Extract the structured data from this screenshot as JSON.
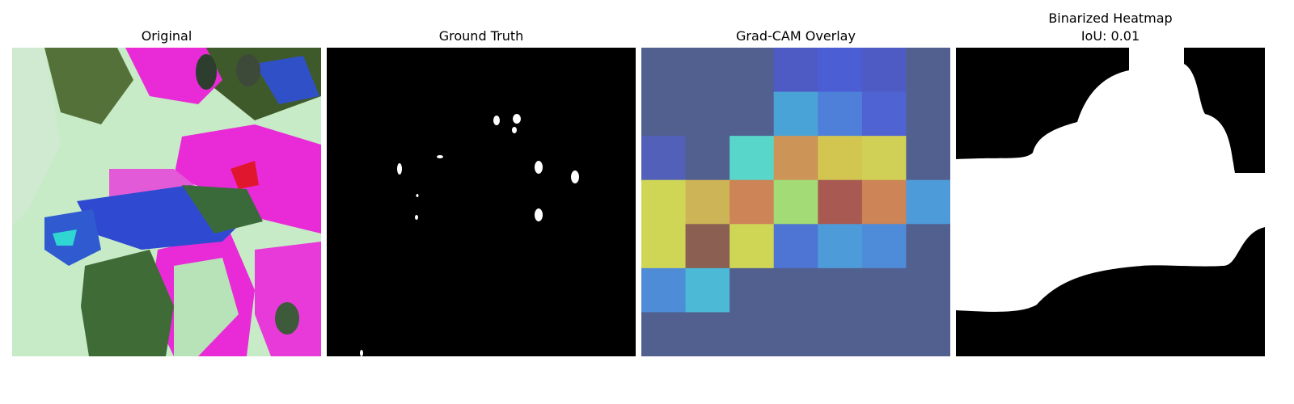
{
  "panels": [
    {
      "title": "Original"
    },
    {
      "title": "Ground Truth"
    },
    {
      "title": "Grad-CAM Overlay"
    },
    {
      "title": "Binarized Heatmap",
      "subtitle": "IoU: 0.01"
    }
  ],
  "gradcam_grid": [
    [
      "#52608f",
      "#52608f",
      "#52608f",
      "#4f5bc4",
      "#4c5ed4",
      "#4f5bc4",
      "#52608f"
    ],
    [
      "#52608f",
      "#52608f",
      "#52608f",
      "#4aa3d6",
      "#4e7fd9",
      "#4f63d3",
      "#52608f"
    ],
    [
      "#5360ba",
      "#52608f",
      "#58d6c9",
      "#cc9457",
      "#d2c651",
      "#d0d056",
      "#52608f"
    ],
    [
      "#cfd656",
      "#cdb456",
      "#cd8456",
      "#a3dc77",
      "#a85a52",
      "#cd8456",
      "#4e9bda"
    ],
    [
      "#cfd656",
      "#8b5f52",
      "#cfd656",
      "#4e74d4",
      "#4e9bda",
      "#4e8bd8",
      "#52608f"
    ],
    [
      "#4e8cd8",
      "#4cbad6",
      "#52608f",
      "#52608f",
      "#52608f",
      "#52608f",
      "#52608f"
    ],
    [
      "#52608f",
      "#52608f",
      "#52608f",
      "#52608f",
      "#52608f",
      "#52608f",
      "#52608f"
    ]
  ],
  "colors": {
    "background": "#ffffff",
    "mask_foreground": "#ffffff",
    "mask_background": "#000000"
  }
}
